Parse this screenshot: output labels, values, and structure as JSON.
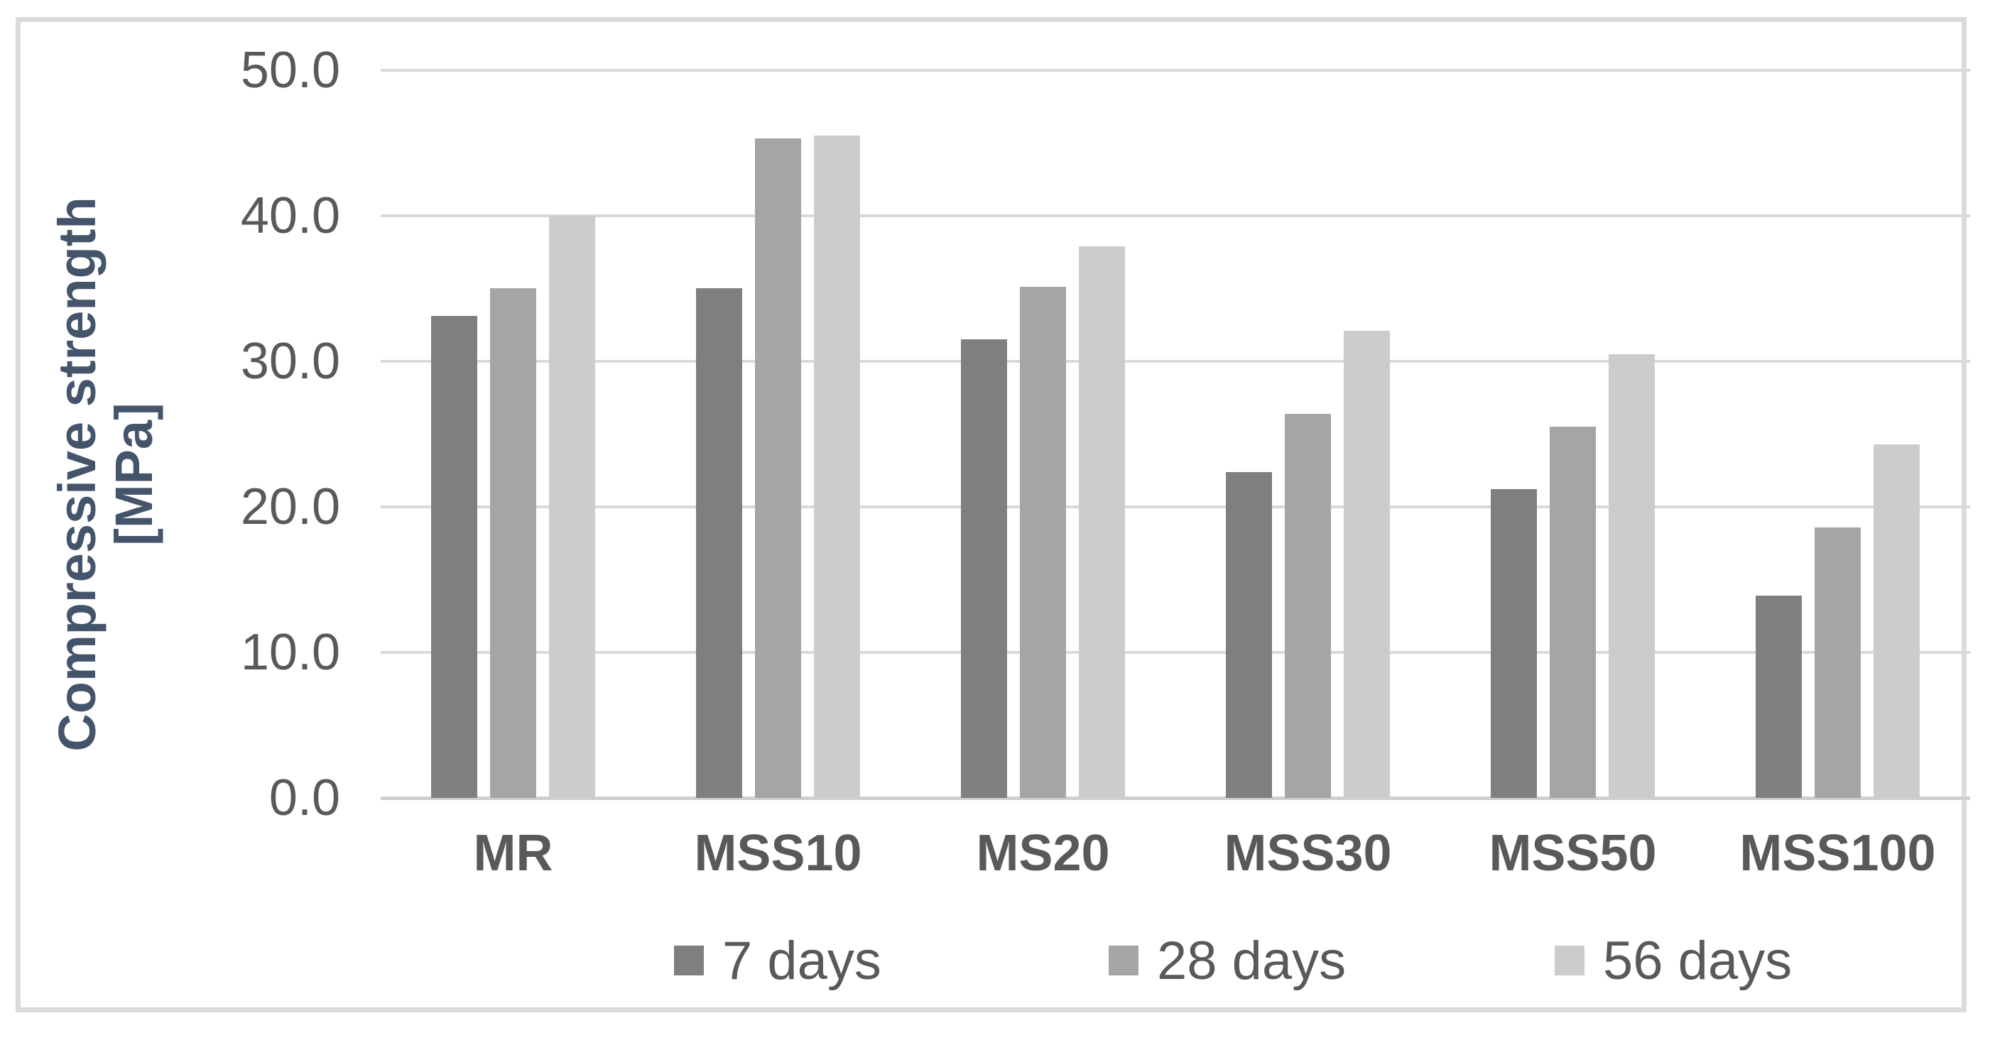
{
  "chart_data": {
    "type": "bar",
    "title": "",
    "categories": [
      "MR",
      "MSS10",
      "MS20",
      "MSS30",
      "MSS50",
      "MSS100"
    ],
    "series": [
      {
        "name": "7 days",
        "color": "#7f7f7f",
        "values": [
          33.1,
          35.0,
          31.5,
          22.4,
          21.2,
          13.9
        ]
      },
      {
        "name": "28 days",
        "color": "#a5a5a5",
        "values": [
          35.0,
          45.3,
          35.1,
          26.4,
          25.5,
          18.6
        ]
      },
      {
        "name": "56 days",
        "color": "#cccccc",
        "values": [
          40.0,
          45.5,
          37.9,
          32.1,
          30.5,
          24.3
        ]
      }
    ],
    "xlabel": "",
    "ylabel": "Compressive strength [MPa]",
    "ylabel_lines": [
      "Compressive strength",
      "[MPa]"
    ],
    "ylim": [
      0,
      50
    ],
    "ytick_labels": [
      "50.0",
      "40.0",
      "30.0",
      "20.0",
      "10.0",
      "0.0"
    ],
    "grid": true,
    "legend_position": "bottom"
  },
  "colors": {
    "background": "#ffffff",
    "frame_border": "#dbdbdb",
    "gridline": "#d9d9d9",
    "axis_line": "#cfcfcf",
    "tick_text": "#595959",
    "category_text": "#595959",
    "legend_text": "#595959",
    "axis_title_text": "#44546A"
  }
}
